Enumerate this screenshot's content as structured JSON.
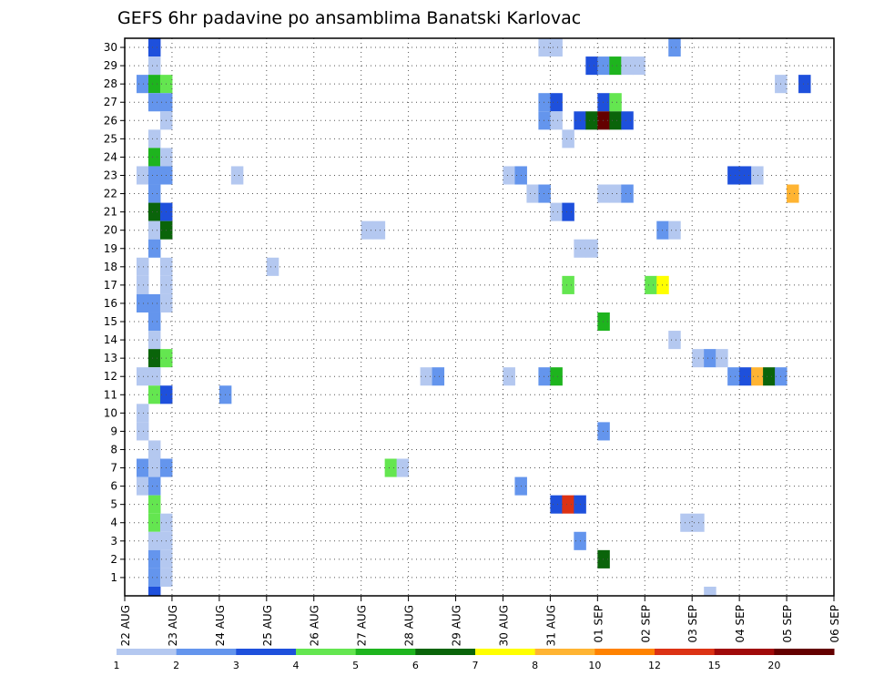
{
  "chart_data": {
    "type": "heatmap",
    "title": "GEFS 6hr padavine po ansamblima Banatski Karlovac",
    "y_tick_labels": [
      "1",
      "2",
      "3",
      "4",
      "5",
      "6",
      "7",
      "8",
      "9",
      "10",
      "11",
      "12",
      "13",
      "14",
      "15",
      "16",
      "17",
      "18",
      "19",
      "20",
      "21",
      "22",
      "23",
      "24",
      "25",
      "26",
      "27",
      "28",
      "29",
      "30"
    ],
    "x_tick_labels": [
      "22 AUG",
      "23 AUG",
      "24 AUG",
      "25 AUG",
      "26 AUG",
      "27 AUG",
      "28 AUG",
      "29 AUG",
      "30 AUG",
      "31 AUG",
      "01 SEP",
      "02 SEP",
      "03 SEP",
      "04 SEP",
      "05 SEP",
      "06 SEP"
    ],
    "grid": true,
    "colorbar": {
      "labels": [
        "1",
        "2",
        "3",
        "4",
        "5",
        "6",
        "7",
        "8",
        "10",
        "12",
        "15",
        "20"
      ],
      "colors": [
        "#b4c8f0",
        "#6495ed",
        "#1e50dc",
        "#64e650",
        "#1eb41e",
        "#0a640a",
        "#ffff00",
        "#ffb432",
        "#ff8200",
        "#dc3214",
        "#a00a0a",
        "#640000"
      ]
    },
    "cells": [
      {
        "day": "22 AUG",
        "t": 2,
        "m": 30,
        "v": 3
      },
      {
        "day": "22 AUG",
        "t": 2,
        "m": 29,
        "v": 1
      },
      {
        "day": "22 AUG",
        "t": 1,
        "m": 28,
        "v": 2
      },
      {
        "day": "22 AUG",
        "t": 2,
        "m": 28,
        "v": 5
      },
      {
        "day": "22 AUG",
        "t": 3,
        "m": 28,
        "v": 4
      },
      {
        "day": "22 AUG",
        "t": 2,
        "m": 27,
        "v": 2
      },
      {
        "day": "22 AUG",
        "t": 3,
        "m": 27,
        "v": 2
      },
      {
        "day": "22 AUG",
        "t": 3,
        "m": 26,
        "v": 1
      },
      {
        "day": "22 AUG",
        "t": 2,
        "m": 25,
        "v": 1
      },
      {
        "day": "22 AUG",
        "t": 2,
        "m": 24,
        "v": 5
      },
      {
        "day": "22 AUG",
        "t": 3,
        "m": 24,
        "v": 1
      },
      {
        "day": "22 AUG",
        "t": 1,
        "m": 23,
        "v": 1
      },
      {
        "day": "22 AUG",
        "t": 2,
        "m": 23,
        "v": 2
      },
      {
        "day": "22 AUG",
        "t": 3,
        "m": 23,
        "v": 2
      },
      {
        "day": "22 AUG",
        "t": 2,
        "m": 22,
        "v": 2
      },
      {
        "day": "22 AUG",
        "t": 2,
        "m": 21,
        "v": 6
      },
      {
        "day": "22 AUG",
        "t": 3,
        "m": 21,
        "v": 3
      },
      {
        "day": "22 AUG",
        "t": 2,
        "m": 20,
        "v": 1
      },
      {
        "day": "22 AUG",
        "t": 3,
        "m": 20,
        "v": 6
      },
      {
        "day": "22 AUG",
        "t": 2,
        "m": 19,
        "v": 2
      },
      {
        "day": "22 AUG",
        "t": 1,
        "m": 18,
        "v": 1
      },
      {
        "day": "22 AUG",
        "t": 3,
        "m": 18,
        "v": 1
      },
      {
        "day": "22 AUG",
        "t": 1,
        "m": 17,
        "v": 1
      },
      {
        "day": "22 AUG",
        "t": 3,
        "m": 17,
        "v": 1
      },
      {
        "day": "22 AUG",
        "t": 1,
        "m": 16,
        "v": 2
      },
      {
        "day": "22 AUG",
        "t": 2,
        "m": 16,
        "v": 2
      },
      {
        "day": "22 AUG",
        "t": 3,
        "m": 16,
        "v": 1
      },
      {
        "day": "22 AUG",
        "t": 2,
        "m": 15,
        "v": 2
      },
      {
        "day": "22 AUG",
        "t": 2,
        "m": 14,
        "v": 1
      },
      {
        "day": "22 AUG",
        "t": 2,
        "m": 13,
        "v": 6
      },
      {
        "day": "22 AUG",
        "t": 3,
        "m": 13,
        "v": 4
      },
      {
        "day": "22 AUG",
        "t": 1,
        "m": 12,
        "v": 1
      },
      {
        "day": "22 AUG",
        "t": 2,
        "m": 12,
        "v": 1
      },
      {
        "day": "22 AUG",
        "t": 2,
        "m": 11,
        "v": 4
      },
      {
        "day": "22 AUG",
        "t": 3,
        "m": 11,
        "v": 3
      },
      {
        "day": "22 AUG",
        "t": 1,
        "m": 10,
        "v": 1
      },
      {
        "day": "22 AUG",
        "t": 1,
        "m": 9,
        "v": 1
      },
      {
        "day": "22 AUG",
        "t": 2,
        "m": 8,
        "v": 1
      },
      {
        "day": "22 AUG",
        "t": 1,
        "m": 7,
        "v": 2
      },
      {
        "day": "22 AUG",
        "t": 2,
        "m": 7,
        "v": 1
      },
      {
        "day": "22 AUG",
        "t": 3,
        "m": 7,
        "v": 2
      },
      {
        "day": "22 AUG",
        "t": 1,
        "m": 6,
        "v": 1
      },
      {
        "day": "22 AUG",
        "t": 2,
        "m": 6,
        "v": 2
      },
      {
        "day": "22 AUG",
        "t": 2,
        "m": 5,
        "v": 4
      },
      {
        "day": "22 AUG",
        "t": 2,
        "m": 4,
        "v": 4
      },
      {
        "day": "22 AUG",
        "t": 3,
        "m": 4,
        "v": 1
      },
      {
        "day": "22 AUG",
        "t": 2,
        "m": 3,
        "v": 1
      },
      {
        "day": "22 AUG",
        "t": 3,
        "m": 3,
        "v": 1
      },
      {
        "day": "22 AUG",
        "t": 2,
        "m": 2,
        "v": 2
      },
      {
        "day": "22 AUG",
        "t": 3,
        "m": 2,
        "v": 1
      },
      {
        "day": "22 AUG",
        "t": 2,
        "m": 1,
        "v": 2
      },
      {
        "day": "22 AUG",
        "t": 3,
        "m": 1,
        "v": 1
      },
      {
        "day": "22 AUG",
        "t": 2,
        "m": 0,
        "v": 3
      },
      {
        "day": "23 AUG",
        "t": 4,
        "m": 11,
        "v": 2
      },
      {
        "day": "24 AUG",
        "t": 1,
        "m": 23,
        "v": 1
      },
      {
        "day": "24 AUG",
        "t": 4,
        "m": 18,
        "v": 1
      },
      {
        "day": "26 AUG",
        "t": 4,
        "m": 20,
        "v": 1
      },
      {
        "day": "27 AUG",
        "t": 1,
        "m": 20,
        "v": 1
      },
      {
        "day": "27 AUG",
        "t": 2,
        "m": 7,
        "v": 4
      },
      {
        "day": "27 AUG",
        "t": 3,
        "m": 7,
        "v": 1
      },
      {
        "day": "28 AUG",
        "t": 1,
        "m": 12,
        "v": 1
      },
      {
        "day": "28 AUG",
        "t": 2,
        "m": 12,
        "v": 2
      },
      {
        "day": "29 AUG",
        "t": 4,
        "m": 23,
        "v": 1
      },
      {
        "day": "30 AUG",
        "t": 1,
        "m": 23,
        "v": 2
      },
      {
        "day": "29 AUG",
        "t": 4,
        "m": 12,
        "v": 1
      },
      {
        "day": "30 AUG",
        "t": 1,
        "m": 6,
        "v": 2
      },
      {
        "day": "30 AUG",
        "t": 2,
        "m": 22,
        "v": 1
      },
      {
        "day": "30 AUG",
        "t": 3,
        "m": 30,
        "v": 1
      },
      {
        "day": "30 AUG",
        "t": 4,
        "m": 30,
        "v": 1
      },
      {
        "day": "30 AUG",
        "t": 3,
        "m": 27,
        "v": 2
      },
      {
        "day": "30 AUG",
        "t": 4,
        "m": 27,
        "v": 3
      },
      {
        "day": "30 AUG",
        "t": 3,
        "m": 26,
        "v": 2
      },
      {
        "day": "30 AUG",
        "t": 4,
        "m": 26,
        "v": 1
      },
      {
        "day": "30 AUG",
        "t": 3,
        "m": 22,
        "v": 2
      },
      {
        "day": "30 AUG",
        "t": 4,
        "m": 21,
        "v": 1
      },
      {
        "day": "30 AUG",
        "t": 3,
        "m": 12,
        "v": 2
      },
      {
        "day": "30 AUG",
        "t": 4,
        "m": 12,
        "v": 5
      },
      {
        "day": "30 AUG",
        "t": 4,
        "m": 5,
        "v": 3
      },
      {
        "day": "31 AUG",
        "t": 1,
        "m": 25,
        "v": 1
      },
      {
        "day": "31 AUG",
        "t": 1,
        "m": 21,
        "v": 3
      },
      {
        "day": "31 AUG",
        "t": 1,
        "m": 17,
        "v": 4
      },
      {
        "day": "31 AUG",
        "t": 1,
        "m": 5,
        "v": 14
      },
      {
        "day": "31 AUG",
        "t": 2,
        "m": 26,
        "v": 3
      },
      {
        "day": "31 AUG",
        "t": 2,
        "m": 19,
        "v": 1
      },
      {
        "day": "31 AUG",
        "t": 2,
        "m": 5,
        "v": 3
      },
      {
        "day": "31 AUG",
        "t": 2,
        "m": 3,
        "v": 2
      },
      {
        "day": "31 AUG",
        "t": 3,
        "m": 26,
        "v": 6
      },
      {
        "day": "31 AUG",
        "t": 3,
        "m": 19,
        "v": 1
      },
      {
        "day": "31 AUG",
        "t": 3,
        "m": 29,
        "v": 3
      },
      {
        "day": "31 AUG",
        "t": 4,
        "m": 29,
        "v": 2
      },
      {
        "day": "31 AUG",
        "t": 4,
        "m": 27,
        "v": 3
      },
      {
        "day": "31 AUG",
        "t": 4,
        "m": 26,
        "v": 25
      },
      {
        "day": "31 AUG",
        "t": 4,
        "m": 22,
        "v": 1
      },
      {
        "day": "31 AUG",
        "t": 4,
        "m": 15,
        "v": 5
      },
      {
        "day": "31 AUG",
        "t": 4,
        "m": 9,
        "v": 2
      },
      {
        "day": "31 AUG",
        "t": 4,
        "m": 2,
        "v": 6
      },
      {
        "day": "01 SEP",
        "t": 1,
        "m": 29,
        "v": 5
      },
      {
        "day": "01 SEP",
        "t": 1,
        "m": 27,
        "v": 4
      },
      {
        "day": "01 SEP",
        "t": 1,
        "m": 26,
        "v": 6
      },
      {
        "day": "01 SEP",
        "t": 1,
        "m": 22,
        "v": 1
      },
      {
        "day": "01 SEP",
        "t": 2,
        "m": 29,
        "v": 1
      },
      {
        "day": "01 SEP",
        "t": 2,
        "m": 26,
        "v": 3
      },
      {
        "day": "01 SEP",
        "t": 2,
        "m": 22,
        "v": 2
      },
      {
        "day": "01 SEP",
        "t": 3,
        "m": 29,
        "v": 1
      },
      {
        "day": "01 SEP",
        "t": 4,
        "m": 17,
        "v": 4
      },
      {
        "day": "02 SEP",
        "t": 1,
        "m": 17,
        "v": 7
      },
      {
        "day": "02 SEP",
        "t": 1,
        "m": 20,
        "v": 2
      },
      {
        "day": "02 SEP",
        "t": 2,
        "m": 20,
        "v": 1
      },
      {
        "day": "02 SEP",
        "t": 2,
        "m": 30,
        "v": 2
      },
      {
        "day": "02 SEP",
        "t": 2,
        "m": 14,
        "v": 1
      },
      {
        "day": "02 SEP",
        "t": 3,
        "m": 4,
        "v": 1
      },
      {
        "day": "02 SEP",
        "t": 4,
        "m": 4,
        "v": 1
      },
      {
        "day": "02 SEP",
        "t": 4,
        "m": 13,
        "v": 1
      },
      {
        "day": "03 SEP",
        "t": 1,
        "m": 13,
        "v": 2
      },
      {
        "day": "03 SEP",
        "t": 2,
        "m": 13,
        "v": 1
      },
      {
        "day": "03 SEP",
        "t": 1,
        "m": 0,
        "v": 1
      },
      {
        "day": "03 SEP",
        "t": 3,
        "m": 23,
        "v": 3
      },
      {
        "day": "03 SEP",
        "t": 4,
        "m": 23,
        "v": 3
      },
      {
        "day": "04 SEP",
        "t": 1,
        "m": 23,
        "v": 1
      },
      {
        "day": "03 SEP",
        "t": 3,
        "m": 12,
        "v": 2
      },
      {
        "day": "03 SEP",
        "t": 4,
        "m": 12,
        "v": 3
      },
      {
        "day": "04 SEP",
        "t": 1,
        "m": 12,
        "v": 8
      },
      {
        "day": "04 SEP",
        "t": 2,
        "m": 12,
        "v": 6
      },
      {
        "day": "04 SEP",
        "t": 3,
        "m": 12,
        "v": 2
      },
      {
        "day": "04 SEP",
        "t": 3,
        "m": 28,
        "v": 1
      },
      {
        "day": "04 SEP",
        "t": 4,
        "m": 22,
        "v": 8
      },
      {
        "day": "05 SEP",
        "t": 1,
        "m": 28,
        "v": 3
      }
    ]
  }
}
